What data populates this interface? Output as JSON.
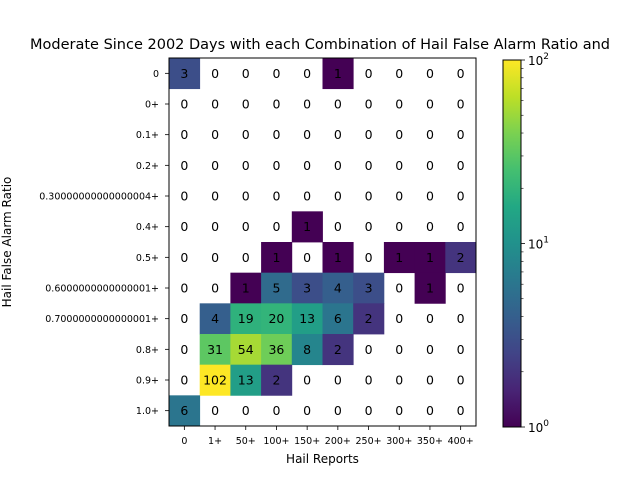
{
  "chart_data": {
    "type": "heatmap",
    "title": "Moderate Since 2002 Days with each Combination of Hail False Alarm Ratio and",
    "xlabel": "Hail Reports",
    "ylabel": "Hail False Alarm Ratio",
    "x_categories": [
      "0",
      "1+",
      "50+",
      "100+",
      "150+",
      "200+",
      "250+",
      "300+",
      "350+",
      "400+"
    ],
    "y_categories": [
      "0",
      "0+",
      "0.1+",
      "0.2+",
      "0.30000000000000004+",
      "0.4+",
      "0.5+",
      "0.6000000000000001+",
      "0.7000000000000001+",
      "0.8+",
      "0.9+",
      "1.0+"
    ],
    "values": [
      [
        3,
        0,
        0,
        0,
        0,
        1,
        0,
        0,
        0,
        0
      ],
      [
        0,
        0,
        0,
        0,
        0,
        0,
        0,
        0,
        0,
        0
      ],
      [
        0,
        0,
        0,
        0,
        0,
        0,
        0,
        0,
        0,
        0
      ],
      [
        0,
        0,
        0,
        0,
        0,
        0,
        0,
        0,
        0,
        0
      ],
      [
        0,
        0,
        0,
        0,
        0,
        0,
        0,
        0,
        0,
        0
      ],
      [
        0,
        0,
        0,
        0,
        1,
        0,
        0,
        0,
        0,
        0
      ],
      [
        0,
        0,
        0,
        1,
        0,
        1,
        0,
        1,
        1,
        2
      ],
      [
        0,
        0,
        1,
        5,
        3,
        4,
        3,
        0,
        1,
        0
      ],
      [
        0,
        4,
        19,
        20,
        13,
        6,
        2,
        0,
        0,
        0
      ],
      [
        0,
        31,
        54,
        36,
        8,
        2,
        0,
        0,
        0,
        0
      ],
      [
        0,
        102,
        13,
        2,
        0,
        0,
        0,
        0,
        0,
        0
      ],
      [
        6,
        0,
        0,
        0,
        0,
        0,
        0,
        0,
        0,
        0
      ]
    ],
    "colorbar": {
      "scale": "log",
      "range": [
        1,
        100
      ],
      "colormap": "viridis",
      "tick_labels": [
        "10^0",
        "10^1",
        "10^2"
      ]
    },
    "grid": false
  }
}
